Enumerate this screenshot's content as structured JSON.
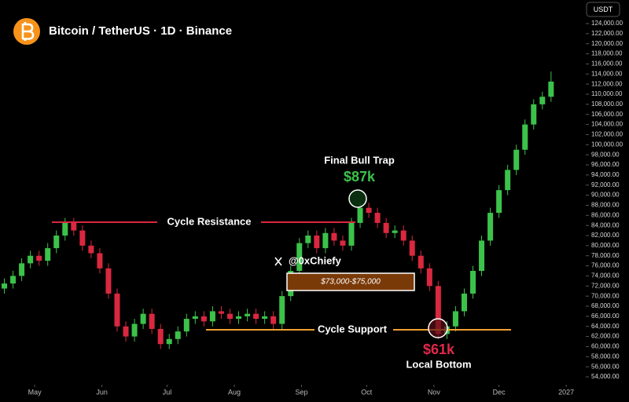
{
  "chart_data": {
    "type": "candlestick",
    "title": "Bitcoin / TetherUS · 1D · Binance",
    "currency": "USDT",
    "up_color": "#3cc24a",
    "down_color": "#d9283f",
    "x": [
      -14,
      -10,
      -6,
      -2,
      2,
      6,
      10,
      14,
      18,
      22,
      26,
      30,
      34,
      38,
      42,
      46,
      50,
      54,
      58,
      62,
      66,
      70,
      74,
      78,
      82,
      86,
      90,
      94,
      98,
      102,
      106,
      110,
      114,
      118,
      122,
      126,
      130,
      134,
      138,
      142,
      146,
      150,
      154,
      158,
      162,
      166,
      170,
      174,
      178,
      182,
      186,
      190,
      194,
      198,
      202,
      206,
      210,
      214,
      218,
      222,
      226,
      230,
      234,
      238
    ],
    "open": [
      71500,
      72500,
      74000,
      76500,
      78000,
      77000,
      79500,
      82000,
      84500,
      83000,
      80000,
      78500,
      75500,
      70500,
      64000,
      62000,
      64500,
      66500,
      63500,
      60500,
      61500,
      63000,
      65500,
      66000,
      65000,
      67000,
      66500,
      65500,
      66000,
      66500,
      65500,
      66000,
      64500,
      70000,
      75000,
      80500,
      82000,
      79500,
      82500,
      81000,
      80000,
      84500,
      87500,
      86500,
      84500,
      82500,
      83000,
      81000,
      78000,
      75500,
      72000,
      62500,
      64000,
      67000,
      70500,
      75000,
      81000,
      86500,
      91000,
      95000,
      99000,
      104000,
      108000,
      109500
    ],
    "close": [
      72500,
      74000,
      76500,
      78000,
      77000,
      79500,
      82000,
      84500,
      83000,
      80000,
      78500,
      75500,
      70500,
      64000,
      62000,
      64500,
      66500,
      63500,
      60500,
      61500,
      63000,
      65500,
      66000,
      65000,
      67000,
      66500,
      65500,
      66000,
      66500,
      65500,
      66000,
      64500,
      70000,
      75000,
      80500,
      82000,
      79500,
      82500,
      81000,
      80000,
      84500,
      87500,
      86500,
      84500,
      82500,
      83000,
      81000,
      78000,
      75500,
      72000,
      62500,
      64000,
      67000,
      70500,
      75000,
      81000,
      86500,
      91000,
      95000,
      99000,
      104000,
      108000,
      109500,
      112500
    ],
    "high": [
      73500,
      75000,
      77500,
      79000,
      79000,
      80500,
      83000,
      85500,
      85500,
      84000,
      81000,
      79500,
      76500,
      71500,
      65000,
      65500,
      67500,
      67500,
      64500,
      62500,
      64000,
      66500,
      67000,
      67000,
      68000,
      68000,
      67500,
      67000,
      67500,
      67500,
      67000,
      67000,
      71000,
      76000,
      81500,
      83000,
      83000,
      83500,
      83500,
      82000,
      85500,
      88500,
      88500,
      87500,
      85500,
      84000,
      84000,
      82000,
      79000,
      76500,
      73000,
      65000,
      68000,
      71500,
      76000,
      82000,
      87500,
      92000,
      96000,
      100000,
      105000,
      109000,
      110500,
      114500
    ],
    "low": [
      70500,
      71500,
      73000,
      75500,
      76000,
      76000,
      78500,
      81000,
      82000,
      79000,
      77500,
      74500,
      69500,
      63000,
      61000,
      61000,
      63500,
      62500,
      59500,
      59500,
      60500,
      62000,
      64500,
      64000,
      64000,
      65500,
      64500,
      64500,
      65000,
      64500,
      64500,
      63500,
      63500,
      69000,
      74000,
      79500,
      78500,
      78500,
      80000,
      79000,
      79000,
      83500,
      85500,
      83500,
      81500,
      81500,
      80000,
      77000,
      74500,
      71000,
      61500,
      61500,
      63000,
      66000,
      69500,
      74000,
      80000,
      85500,
      90000,
      94000,
      98000,
      103000,
      107000,
      108500
    ],
    "xlim": [
      -16,
      254
    ],
    "ylim": [
      54000,
      124000
    ],
    "xticks": [
      {
        "value": 0,
        "label": "May"
      },
      {
        "value": 31,
        "label": "Jun"
      },
      {
        "value": 61,
        "label": "Jul"
      },
      {
        "value": 92,
        "label": "Aug"
      },
      {
        "value": 123,
        "label": "Sep"
      },
      {
        "value": 153,
        "label": "Oct"
      },
      {
        "value": 184,
        "label": "Nov"
      },
      {
        "value": 214,
        "label": "Dec"
      },
      {
        "value": 245,
        "label": "2027"
      }
    ],
    "yticks": [
      {
        "value": 124000,
        "label": "124,000.00"
      },
      {
        "value": 122000,
        "label": "122,000.00"
      },
      {
        "value": 120000,
        "label": "120,000.00"
      },
      {
        "value": 118000,
        "label": "118,000.00"
      },
      {
        "value": 116000,
        "label": "116,000.00"
      },
      {
        "value": 114000,
        "label": "114,000.00"
      },
      {
        "value": 112000,
        "label": "112,000.00"
      },
      {
        "value": 110000,
        "label": "110,000.00"
      },
      {
        "value": 108000,
        "label": "108,000.00"
      },
      {
        "value": 106000,
        "label": "106,000.00"
      },
      {
        "value": 104000,
        "label": "104,000.00"
      },
      {
        "value": 102000,
        "label": "102,000.00"
      },
      {
        "value": 100000,
        "label": "100,000.00"
      },
      {
        "value": 98000,
        "label": "98,000.00"
      },
      {
        "value": 96000,
        "label": "96,000.00"
      },
      {
        "value": 94000,
        "label": "94,000.00"
      },
      {
        "value": 92000,
        "label": "92,000.00"
      },
      {
        "value": 90000,
        "label": "90,000.00"
      },
      {
        "value": 88000,
        "label": "88,000.00"
      },
      {
        "value": 86000,
        "label": "86,000.00"
      },
      {
        "value": 84000,
        "label": "84,000.00"
      },
      {
        "value": 82000,
        "label": "82,000.00"
      },
      {
        "value": 80000,
        "label": "80,000.00"
      },
      {
        "value": 78000,
        "label": "78,000.00"
      },
      {
        "value": 76000,
        "label": "76,000.00"
      },
      {
        "value": 74000,
        "label": "74,000.00"
      },
      {
        "value": 72000,
        "label": "72,000.00"
      },
      {
        "value": 70000,
        "label": "70,000.00"
      },
      {
        "value": 68000,
        "label": "68,000.00"
      },
      {
        "value": 66000,
        "label": "66,000.00"
      },
      {
        "value": 64000,
        "label": "64,000.00"
      },
      {
        "value": 62000,
        "label": "62,000.00"
      },
      {
        "value": 60000,
        "label": "60,000.00"
      },
      {
        "value": 58000,
        "label": "58,000.00"
      },
      {
        "value": 56000,
        "label": "56,000.00"
      },
      {
        "value": 54000,
        "label": "54,000.00"
      }
    ],
    "resistance_label": "Cycle Resistance",
    "support_label": "Cycle Support",
    "peak_label": "Final Bull Trap",
    "peak_value": "$87k",
    "bottom_value": "$61k",
    "bottom_label": "Local Bottom",
    "zone_label": "$73,000-$75,000",
    "watermark": "@0xChiefy"
  }
}
